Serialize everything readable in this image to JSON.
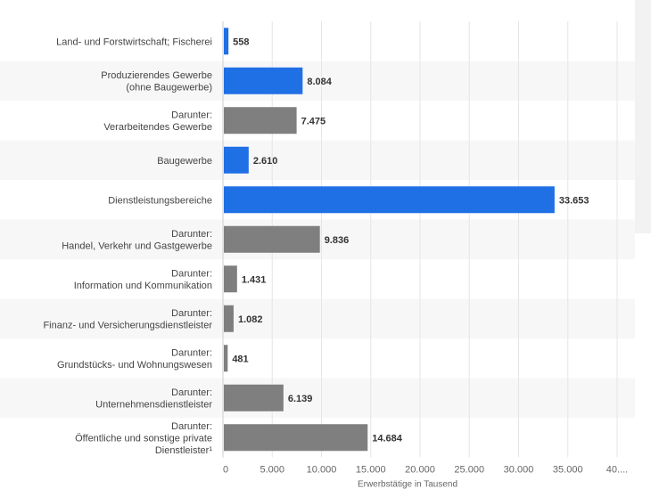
{
  "chart_data": {
    "type": "bar",
    "orientation": "horizontal",
    "categories": [
      [
        "Land- und Forstwirtschaft; Fischerei"
      ],
      [
        "Produzierendes Gewerbe",
        "(ohne Baugewerbe)"
      ],
      [
        "Darunter:",
        "Verarbeitendes Gewerbe"
      ],
      [
        "Baugewerbe"
      ],
      [
        "Dienstleistungsbereiche"
      ],
      [
        "Darunter:",
        "Handel, Verkehr und Gastgewerbe"
      ],
      [
        "Darunter:",
        "Information und Kommunikation"
      ],
      [
        "Darunter:",
        "Finanz- und Versicherungsdienstleister"
      ],
      [
        "Darunter:",
        "Grundstücks- und Wohnungswesen"
      ],
      [
        "Darunter:",
        "Unternehmensdienstleister"
      ],
      [
        "Darunter:",
        "Öffentliche und sonstige private",
        "Dienstleister¹"
      ]
    ],
    "values": [
      558,
      8084,
      7475,
      2610,
      33653,
      9836,
      1431,
      1082,
      481,
      6139,
      14684
    ],
    "value_labels": [
      "558",
      "8.084",
      "7.475",
      "2.610",
      "33.653",
      "9.836",
      "1.431",
      "1.082",
      "481",
      "6.139",
      "14.684"
    ],
    "bar_colors": [
      "#1f6fe5",
      "#1f6fe5",
      "#7f7f7f",
      "#1f6fe5",
      "#1f6fe5",
      "#7f7f7f",
      "#7f7f7f",
      "#7f7f7f",
      "#7f7f7f",
      "#7f7f7f",
      "#7f7f7f"
    ],
    "xlim": [
      0,
      40000
    ],
    "xticks": [
      0,
      5000,
      10000,
      15000,
      20000,
      25000,
      30000,
      35000,
      40000
    ],
    "xtick_labels": [
      "0",
      "5.000",
      "10.000",
      "15.000",
      "20.000",
      "25.000",
      "30.000",
      "35.000",
      "40...."
    ],
    "xlabel": "Erwerbstätige in Tausend",
    "grid": true,
    "stripe_color": "#f7f7f7"
  }
}
